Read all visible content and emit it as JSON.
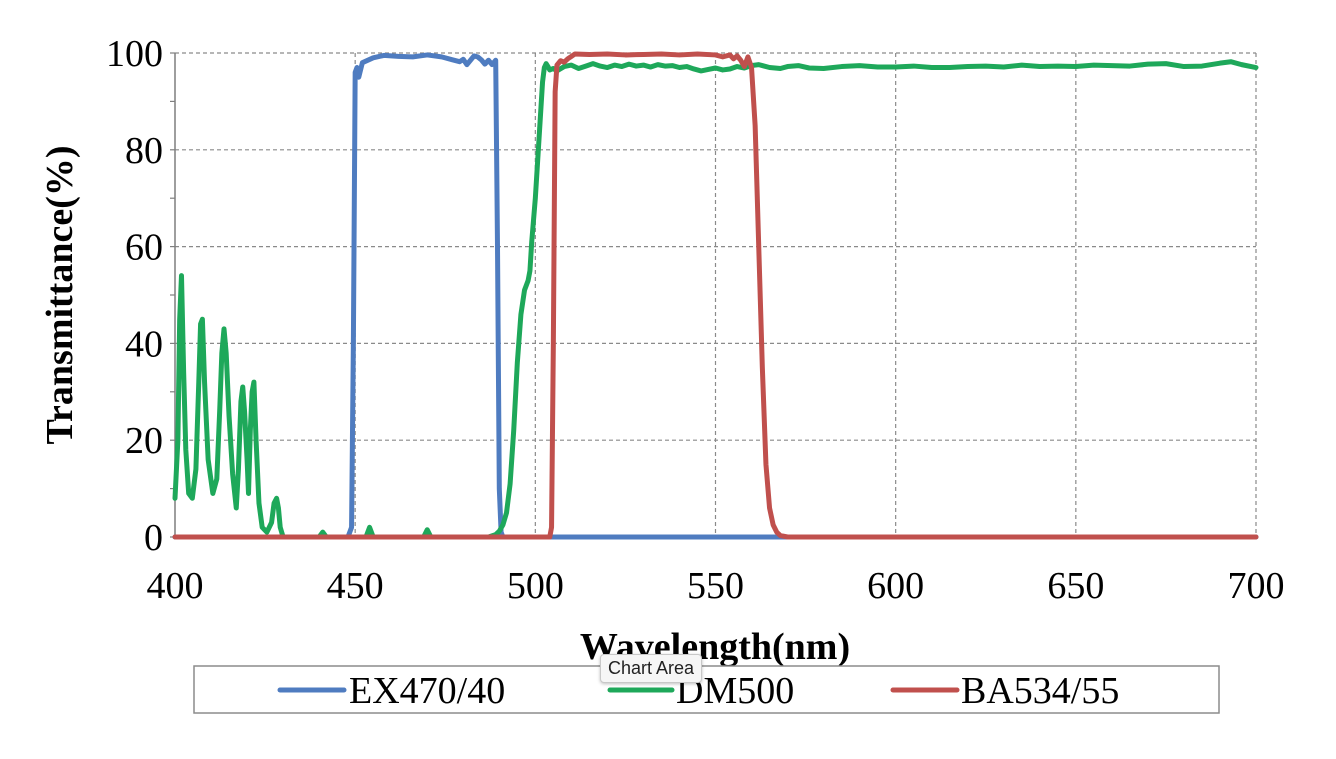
{
  "chart_data": {
    "type": "line",
    "title": "",
    "xlabel": "Wavelength(nm)",
    "ylabel": "Transmittance(%)",
    "xlim": [
      400,
      700
    ],
    "ylim": [
      0,
      100
    ],
    "x_ticks": [
      400,
      450,
      500,
      550,
      600,
      650,
      700
    ],
    "y_ticks": [
      0,
      20,
      40,
      60,
      80,
      100
    ],
    "x_tick_labels": [
      "400",
      "450",
      "500",
      "550",
      "600",
      "650",
      "700"
    ],
    "y_tick_labels": [
      "0",
      "20",
      "40",
      "60",
      "80",
      "100"
    ],
    "grid": true,
    "legend_position": "bottom",
    "series": [
      {
        "name": "EX470/40",
        "color": "#4f7cc0",
        "points": [
          [
            400,
            0
          ],
          [
            448,
            0
          ],
          [
            449,
            2
          ],
          [
            449.5,
            40
          ],
          [
            450,
            96
          ],
          [
            450.5,
            97
          ],
          [
            451,
            95
          ],
          [
            452,
            98
          ],
          [
            455,
            99
          ],
          [
            458,
            99.5
          ],
          [
            462,
            99.3
          ],
          [
            466,
            99.2
          ],
          [
            470,
            99.6
          ],
          [
            474,
            99.2
          ],
          [
            477,
            98.6
          ],
          [
            479,
            98.2
          ],
          [
            480,
            98.7
          ],
          [
            481,
            97.6
          ],
          [
            482,
            98.5
          ],
          [
            483,
            99.4
          ],
          [
            484,
            99.2
          ],
          [
            485,
            98.6
          ],
          [
            486,
            97.7
          ],
          [
            487,
            98.5
          ],
          [
            488,
            97.6
          ],
          [
            489,
            98.5
          ],
          [
            489.5,
            60
          ],
          [
            490,
            10
          ],
          [
            490.5,
            1
          ],
          [
            491,
            0
          ],
          [
            700,
            0
          ]
        ]
      },
      {
        "name": "DM500",
        "color": "#1ea85a",
        "points": [
          [
            400,
            8
          ],
          [
            400.8,
            20
          ],
          [
            401.3,
            45
          ],
          [
            401.8,
            54
          ],
          [
            402.4,
            34
          ],
          [
            403,
            18
          ],
          [
            403.8,
            9
          ],
          [
            404.8,
            8
          ],
          [
            405.8,
            14
          ],
          [
            406.6,
            32
          ],
          [
            407.1,
            44
          ],
          [
            407.6,
            45
          ],
          [
            408.2,
            32
          ],
          [
            409.2,
            16
          ],
          [
            410.5,
            9
          ],
          [
            411.6,
            12
          ],
          [
            412.4,
            26
          ],
          [
            413,
            38
          ],
          [
            413.6,
            43
          ],
          [
            414.2,
            38
          ],
          [
            415,
            25
          ],
          [
            416,
            13
          ],
          [
            417,
            6
          ],
          [
            417.6,
            14
          ],
          [
            418.3,
            28
          ],
          [
            418.8,
            31
          ],
          [
            419.3,
            26
          ],
          [
            420,
            16
          ],
          [
            420.4,
            9
          ],
          [
            420.9,
            22
          ],
          [
            421.4,
            30
          ],
          [
            421.9,
            32
          ],
          [
            422.5,
            20
          ],
          [
            423.3,
            7
          ],
          [
            424.2,
            2
          ],
          [
            425.5,
            1
          ],
          [
            426.8,
            3
          ],
          [
            427.5,
            7
          ],
          [
            428.2,
            8
          ],
          [
            428.7,
            6
          ],
          [
            429.2,
            2
          ],
          [
            430,
            0
          ],
          [
            440,
            0
          ],
          [
            441,
            1
          ],
          [
            442,
            0
          ],
          [
            453,
            0
          ],
          [
            454,
            2
          ],
          [
            455,
            0
          ],
          [
            469,
            0
          ],
          [
            470,
            1.5
          ],
          [
            471,
            0
          ],
          [
            487,
            0
          ],
          [
            489,
            0.5
          ],
          [
            490,
            1.2
          ],
          [
            491,
            2.5
          ],
          [
            492,
            5
          ],
          [
            493,
            11
          ],
          [
            494,
            22
          ],
          [
            495,
            36
          ],
          [
            496,
            46
          ],
          [
            497,
            51
          ],
          [
            498,
            53
          ],
          [
            498.5,
            55
          ],
          [
            499,
            61
          ],
          [
            500,
            70
          ],
          [
            501,
            82
          ],
          [
            501.5,
            88
          ],
          [
            502,
            94
          ],
          [
            502.5,
            97
          ],
          [
            503,
            97.8
          ],
          [
            503.5,
            97.2
          ],
          [
            504,
            96.5
          ],
          [
            505,
            96.8
          ],
          [
            506,
            96.3
          ],
          [
            508,
            97.2
          ],
          [
            510,
            97.5
          ],
          [
            512,
            96.8
          ],
          [
            514,
            97.3
          ],
          [
            516,
            97.8
          ],
          [
            518,
            97.3
          ],
          [
            520,
            97
          ],
          [
            522,
            97.5
          ],
          [
            524,
            97.2
          ],
          [
            526,
            97.7
          ],
          [
            528,
            97.3
          ],
          [
            530,
            97.5
          ],
          [
            532,
            97.1
          ],
          [
            534,
            97.6
          ],
          [
            536,
            97.3
          ],
          [
            538,
            97.4
          ],
          [
            540,
            97
          ],
          [
            542,
            97.2
          ],
          [
            544,
            96.7
          ],
          [
            546,
            96.3
          ],
          [
            548,
            96.6
          ],
          [
            550,
            96.9
          ],
          [
            552,
            96.5
          ],
          [
            554,
            96.7
          ],
          [
            556,
            97.2
          ],
          [
            558,
            96.9
          ],
          [
            560,
            97.4
          ],
          [
            562,
            97.6
          ],
          [
            565,
            97
          ],
          [
            568,
            96.8
          ],
          [
            570,
            97.2
          ],
          [
            573,
            97.4
          ],
          [
            576,
            96.9
          ],
          [
            580,
            96.8
          ],
          [
            585,
            97.2
          ],
          [
            590,
            97.4
          ],
          [
            595,
            97.1
          ],
          [
            600,
            97.1
          ],
          [
            605,
            97.3
          ],
          [
            610,
            97
          ],
          [
            615,
            97
          ],
          [
            620,
            97.2
          ],
          [
            625,
            97.3
          ],
          [
            630,
            97.1
          ],
          [
            635,
            97.5
          ],
          [
            640,
            97.2
          ],
          [
            645,
            97.3
          ],
          [
            650,
            97.2
          ],
          [
            655,
            97.5
          ],
          [
            660,
            97.4
          ],
          [
            665,
            97.3
          ],
          [
            670,
            97.7
          ],
          [
            675,
            97.8
          ],
          [
            680,
            97.2
          ],
          [
            685,
            97.3
          ],
          [
            690,
            97.9
          ],
          [
            693,
            98.2
          ],
          [
            696,
            97.6
          ],
          [
            700,
            97
          ]
        ]
      },
      {
        "name": "BA534/55",
        "color": "#c0504d",
        "points": [
          [
            400,
            0
          ],
          [
            504,
            0
          ],
          [
            504.5,
            2
          ],
          [
            505,
            40
          ],
          [
            505.5,
            92
          ],
          [
            506,
            97.5
          ],
          [
            507,
            98.4
          ],
          [
            508,
            98.1
          ],
          [
            509,
            98.8
          ],
          [
            510,
            99.3
          ],
          [
            511,
            99.8
          ],
          [
            515,
            99.7
          ],
          [
            520,
            99.8
          ],
          [
            525,
            99.6
          ],
          [
            530,
            99.7
          ],
          [
            535,
            99.8
          ],
          [
            540,
            99.6
          ],
          [
            545,
            99.8
          ],
          [
            550,
            99.6
          ],
          [
            552,
            99.2
          ],
          [
            554,
            99.6
          ],
          [
            555,
            98.8
          ],
          [
            556,
            99.4
          ],
          [
            557,
            98.5
          ],
          [
            558,
            97.2
          ],
          [
            559,
            99.2
          ],
          [
            560,
            97
          ],
          [
            561,
            85
          ],
          [
            562,
            60
          ],
          [
            563,
            35
          ],
          [
            564,
            15
          ],
          [
            565,
            6
          ],
          [
            566,
            2.5
          ],
          [
            567,
            1
          ],
          [
            568,
            0.3
          ],
          [
            570,
            0
          ],
          [
            700,
            0
          ]
        ]
      }
    ]
  },
  "ui": {
    "tooltip_text": "Chart Area"
  }
}
